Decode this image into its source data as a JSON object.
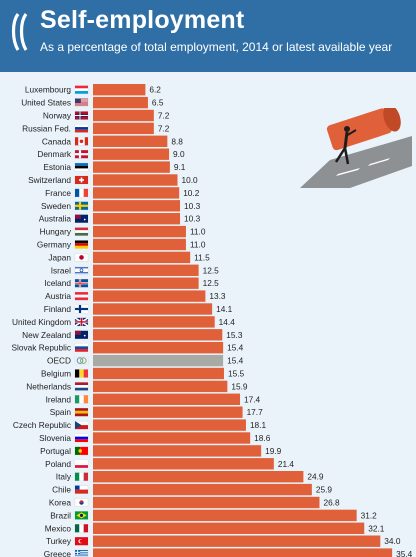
{
  "header": {
    "title": "Self-employment",
    "subtitle": "As a percentage of total employment, 2014 or latest available year"
  },
  "colors": {
    "header_bg": "#2f6fa6",
    "bar": "#e0603a",
    "bar_highlight": "#a8aaa6",
    "background": "#eaf3fa"
  },
  "chart_data": {
    "type": "bar",
    "orientation": "horizontal",
    "categories": [
      "Luxembourg",
      "United States",
      "Norway",
      "Russian Fed.",
      "Canada",
      "Denmark",
      "Estonia",
      "Switzerland",
      "France",
      "Sweden",
      "Australia",
      "Hungary",
      "Germany",
      "Japan",
      "Israel",
      "Iceland",
      "Austria",
      "Finland",
      "United Kingdom",
      "New Zealand",
      "Slovak Republic",
      "OECD",
      "Belgium",
      "Netherlands",
      "Ireland",
      "Spain",
      "Czech Republic",
      "Slovenia",
      "Portugal",
      "Poland",
      "Italy",
      "Chile",
      "Korea",
      "Brazil",
      "Mexico",
      "Turkey",
      "Greece"
    ],
    "values": [
      6.2,
      6.5,
      7.2,
      7.2,
      8.8,
      9.0,
      9.1,
      10.0,
      10.2,
      10.3,
      10.3,
      11.0,
      11.0,
      11.5,
      12.5,
      12.5,
      13.3,
      14.1,
      14.4,
      15.3,
      15.4,
      15.4,
      15.5,
      15.9,
      17.4,
      17.7,
      18.1,
      18.6,
      19.9,
      21.4,
      24.9,
      25.9,
      26.8,
      31.2,
      32.1,
      34.0,
      35.4
    ],
    "value_labels": [
      "6.2",
      "6.5",
      "7.2",
      "7.2",
      "8.8",
      "9.0",
      "9.1",
      "10.0",
      "10.2",
      "10.3",
      "10.3",
      "11.0",
      "11.0",
      "11.5",
      "12.5",
      "12.5",
      "13.3",
      "14.1",
      "14.4",
      "15.3",
      "15.4",
      "15.4",
      "15.5",
      "15.9",
      "17.4",
      "17.7",
      "18.1",
      "18.6",
      "19.9",
      "21.4",
      "24.9",
      "25.9",
      "26.8",
      "31.2",
      "32.1",
      "34.0",
      "35.4"
    ],
    "highlight": "OECD",
    "xlim": [
      0,
      36
    ],
    "title": "Self-employment",
    "xlabel": "",
    "ylabel": "",
    "grid": false
  },
  "flags": {
    "Luxembourg": [
      "#ed2939",
      "#ffffff",
      "#00a1de"
    ],
    "United States": "us",
    "Norway": "cross:#ba0c2f:#00205b:#ffffff",
    "Russian Fed.": [
      "#ffffff",
      "#0039a6",
      "#d52b1e"
    ],
    "Canada": "ca",
    "Denmark": "cross:#c8102e:#ffffff:",
    "Estonia": [
      "#0072ce",
      "#000000",
      "#ffffff"
    ],
    "Switzerland": "ch",
    "France": "v:#0055a4:#ffffff:#ef4135",
    "Sweden": "cross:#006aa7:#fecc00:",
    "Australia": "au",
    "Hungary": [
      "#cd2a3e",
      "#ffffff",
      "#436f4d"
    ],
    "Germany": [
      "#000000",
      "#dd0000",
      "#ffce00"
    ],
    "Japan": "jp",
    "Israel": "il",
    "Iceland": "cross:#02529c:#ffffff:#dc1e35",
    "Austria": [
      "#ed2939",
      "#ffffff",
      "#ed2939"
    ],
    "Finland": "cross:#ffffff:#003580:",
    "United Kingdom": "uk",
    "New Zealand": "au",
    "Slovak Republic": [
      "#ffffff",
      "#0b4ea2",
      "#ee1c25"
    ],
    "OECD": "oecd",
    "Belgium": "v:#000000:#fdda24:#ef3340",
    "Netherlands": [
      "#ae1c28",
      "#ffffff",
      "#21468b"
    ],
    "Ireland": "v:#169b62:#ffffff:#ff883e",
    "Spain": [
      "#aa151b",
      "#f1bf00",
      "#aa151b"
    ],
    "Czech Republic": "cz",
    "Slovenia": [
      "#ffffff",
      "#0000ff",
      "#ff0000"
    ],
    "Portugal": "pt",
    "Poland": [
      "#ffffff",
      "#ffffff",
      "#dc143c"
    ],
    "Italy": "v:#009246:#ffffff:#ce2b37",
    "Chile": "cl",
    "Korea": "kr",
    "Brazil": "br",
    "Mexico": "v:#006847:#ffffff:#ce1126",
    "Turkey": "tr",
    "Greece": "gr"
  }
}
